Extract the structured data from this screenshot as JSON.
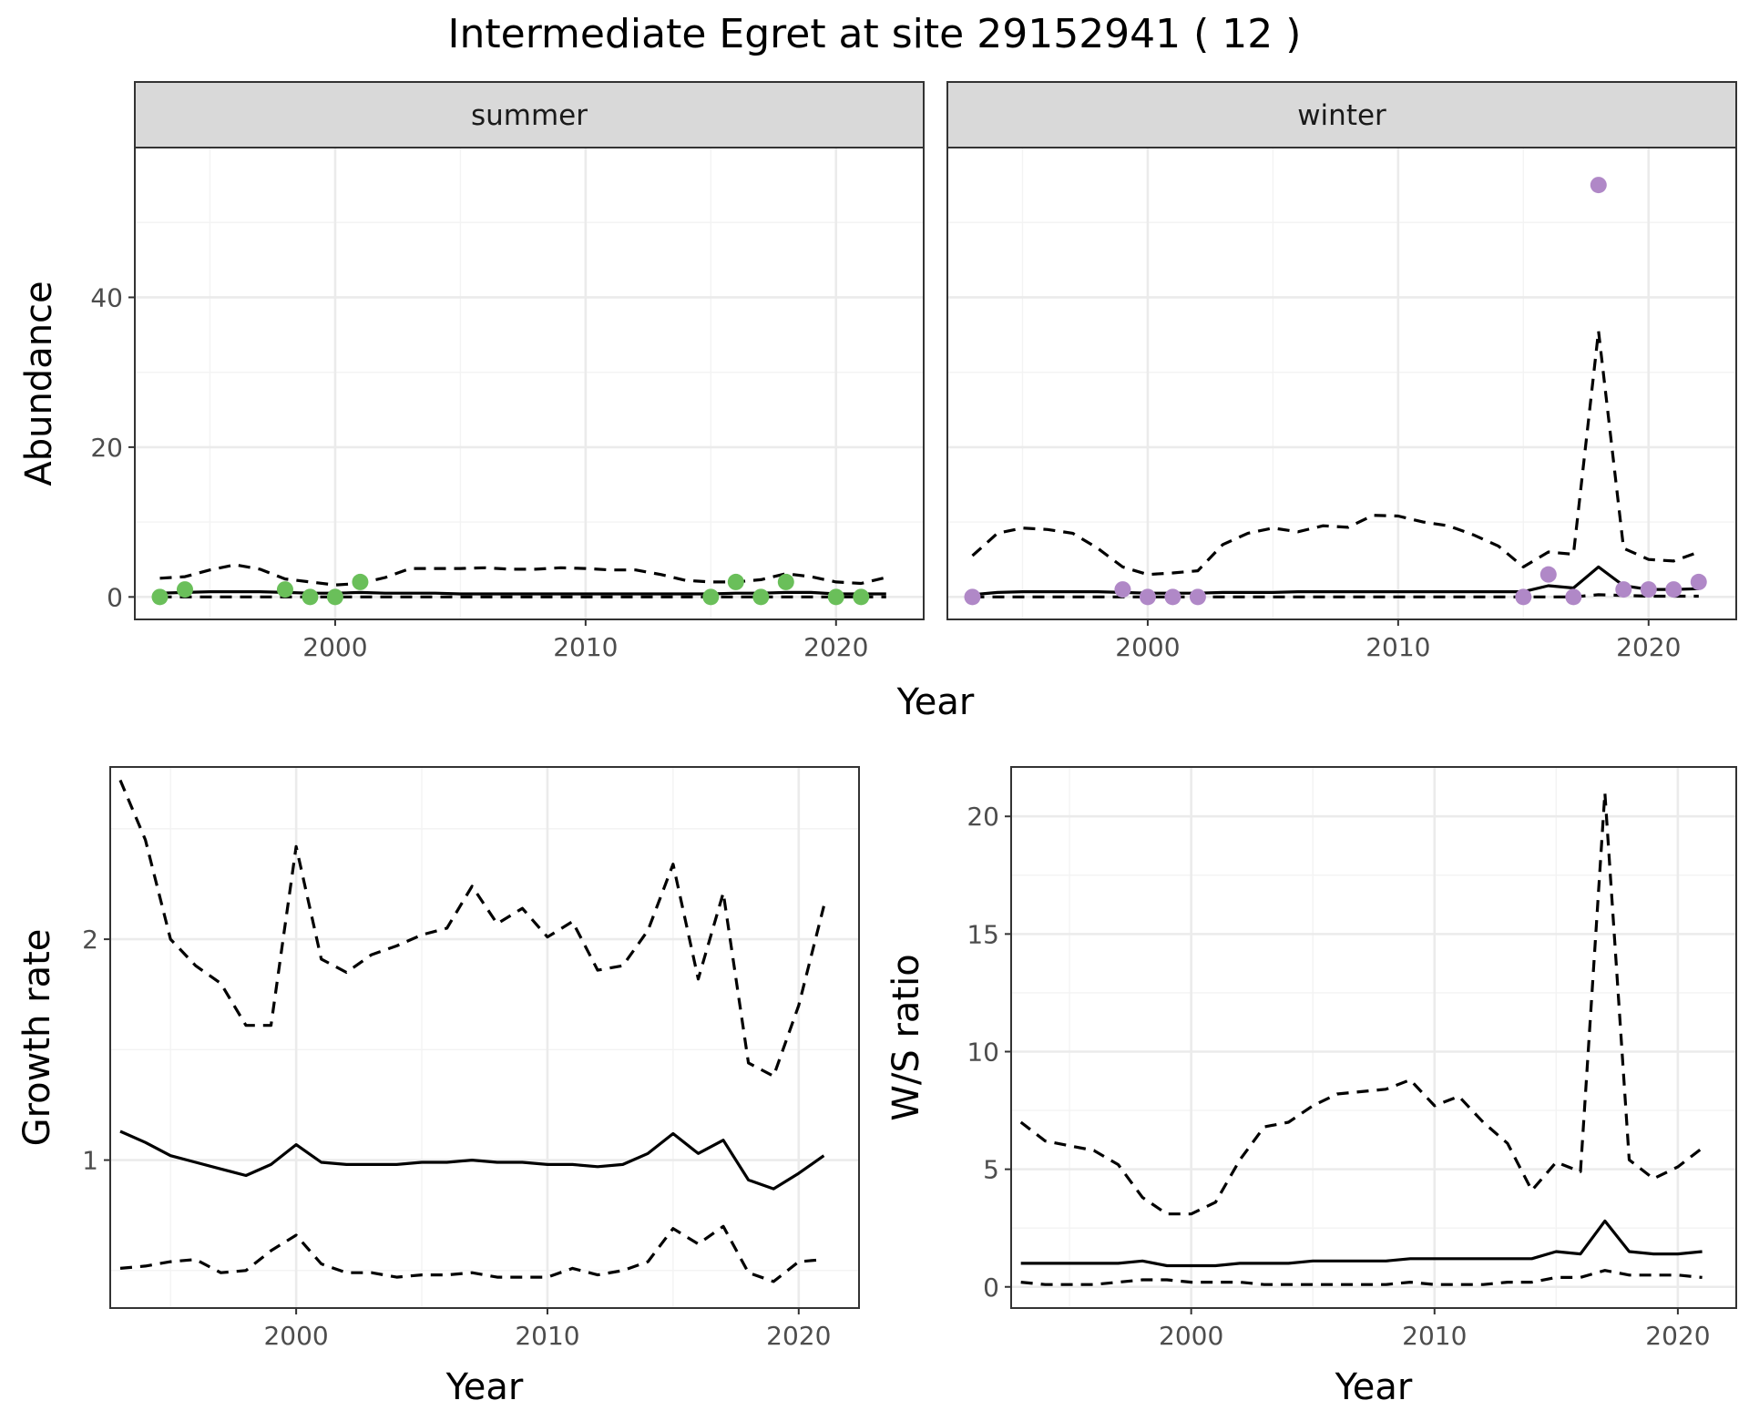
{
  "figure": {
    "title": "Intermediate Egret at site 29152941 ( 12 )"
  },
  "chart_data": [
    {
      "id": "abundance",
      "type": "line",
      "xlabel": "Year",
      "ylabel": "Abundance",
      "xlim": [
        1992,
        2023.5
      ],
      "ylim": [
        -3,
        60
      ],
      "x_ticks": [
        2000,
        2010,
        2020
      ],
      "y_ticks": [
        0,
        20,
        40
      ],
      "grid": true,
      "facets": [
        {
          "label": "summer",
          "point_color": "#6abf5a",
          "x": [
            1993,
            1994,
            1995,
            1996,
            1997,
            1998,
            1999,
            2000,
            2001,
            2002,
            2003,
            2004,
            2005,
            2006,
            2007,
            2008,
            2009,
            2010,
            2011,
            2012,
            2013,
            2014,
            2015,
            2016,
            2017,
            2018,
            2019,
            2020,
            2021,
            2022
          ],
          "estimate": [
            0.5,
            0.6,
            0.7,
            0.7,
            0.7,
            0.6,
            0.5,
            0.5,
            0.6,
            0.5,
            0.5,
            0.5,
            0.4,
            0.4,
            0.4,
            0.4,
            0.4,
            0.4,
            0.4,
            0.4,
            0.4,
            0.4,
            0.4,
            0.5,
            0.5,
            0.6,
            0.6,
            0.4,
            0.4,
            0.4
          ],
          "upper": [
            2.5,
            2.7,
            3.6,
            4.3,
            3.7,
            2.4,
            2.0,
            1.6,
            1.8,
            2.6,
            3.8,
            3.8,
            3.8,
            3.9,
            3.7,
            3.7,
            3.9,
            3.8,
            3.6,
            3.6,
            3.0,
            2.2,
            2.0,
            2.0,
            2.3,
            3.1,
            2.7,
            2.0,
            1.8,
            2.6
          ],
          "lower": [
            0,
            0,
            0,
            0,
            0,
            0,
            0,
            0,
            0,
            0,
            0,
            0,
            0,
            0,
            0,
            0,
            0,
            0,
            0,
            0,
            0,
            0,
            0,
            0,
            0,
            0,
            0,
            0,
            0,
            0
          ],
          "observed": {
            "x": [
              1993,
              1994,
              1998,
              1999,
              2000,
              2001,
              2015,
              2016,
              2017,
              2018,
              2020,
              2021
            ],
            "y": [
              0,
              1,
              1,
              0,
              0,
              2,
              0,
              2,
              0,
              2,
              0,
              0
            ]
          }
        },
        {
          "label": "winter",
          "point_color": "#b088c7",
          "x": [
            1993,
            1994,
            1995,
            1996,
            1997,
            1998,
            1999,
            2000,
            2001,
            2002,
            2003,
            2004,
            2005,
            2006,
            2007,
            2008,
            2009,
            2010,
            2011,
            2012,
            2013,
            2014,
            2015,
            2016,
            2017,
            2018,
            2019,
            2020,
            2021,
            2022
          ],
          "estimate": [
            0.3,
            0.6,
            0.7,
            0.7,
            0.7,
            0.7,
            0.6,
            0.5,
            0.5,
            0.5,
            0.6,
            0.6,
            0.6,
            0.7,
            0.7,
            0.7,
            0.7,
            0.7,
            0.7,
            0.7,
            0.7,
            0.7,
            0.7,
            1.5,
            1.2,
            4.0,
            1.5,
            1.0,
            1.0,
            1.1
          ],
          "upper": [
            5.5,
            8.5,
            9.2,
            9.0,
            8.5,
            6.5,
            4.0,
            3.0,
            3.2,
            3.5,
            7.0,
            8.5,
            9.2,
            8.7,
            9.5,
            9.3,
            10.9,
            10.8,
            10.0,
            9.5,
            8.3,
            6.8,
            4.0,
            6.0,
            5.7,
            35.5,
            6.5,
            5.0,
            4.8,
            6.0
          ],
          "lower": [
            0,
            0,
            0,
            0,
            0,
            0,
            0,
            0,
            0,
            0,
            0,
            0,
            0,
            0,
            0,
            0,
            0,
            0,
            0,
            0,
            0,
            0,
            0,
            0,
            0,
            0.3,
            0.2,
            0.1,
            0.1,
            0.1
          ],
          "observed": {
            "x": [
              1993,
              1999,
              2000,
              2001,
              2002,
              2015,
              2016,
              2017,
              2018,
              2019,
              2020,
              2021,
              2022
            ],
            "y": [
              0,
              1,
              0,
              0,
              0,
              0,
              3,
              0,
              55,
              1,
              1,
              1,
              2
            ]
          }
        }
      ]
    },
    {
      "id": "growth",
      "type": "line",
      "xlabel": "Year",
      "ylabel": "Growth rate",
      "xlim": [
        1992.6,
        2022.4
      ],
      "ylim": [
        0.33,
        2.78
      ],
      "x_ticks": [
        2000,
        2010,
        2020
      ],
      "y_ticks": [
        1,
        2
      ],
      "grid": true,
      "x": [
        1993,
        1994,
        1995,
        1996,
        1997,
        1998,
        1999,
        2000,
        2001,
        2002,
        2003,
        2004,
        2005,
        2006,
        2007,
        2008,
        2009,
        2010,
        2011,
        2012,
        2013,
        2014,
        2015,
        2016,
        2017,
        2018,
        2019,
        2020,
        2021
      ],
      "estimate": [
        1.13,
        1.08,
        1.02,
        0.99,
        0.96,
        0.93,
        0.98,
        1.07,
        0.99,
        0.98,
        0.98,
        0.98,
        0.99,
        0.99,
        1.0,
        0.99,
        0.99,
        0.98,
        0.98,
        0.97,
        0.98,
        1.03,
        1.12,
        1.03,
        1.09,
        0.91,
        0.87,
        0.94,
        1.02
      ],
      "upper": [
        2.72,
        2.45,
        2.0,
        1.88,
        1.8,
        1.61,
        1.61,
        2.42,
        1.91,
        1.85,
        1.93,
        1.97,
        2.02,
        2.05,
        2.24,
        2.07,
        2.14,
        2.01,
        2.08,
        1.86,
        1.88,
        2.04,
        2.34,
        1.82,
        2.21,
        1.44,
        1.38,
        1.7,
        2.15
      ],
      "lower": [
        0.51,
        0.52,
        0.54,
        0.55,
        0.49,
        0.5,
        0.59,
        0.66,
        0.53,
        0.49,
        0.49,
        0.47,
        0.48,
        0.48,
        0.49,
        0.47,
        0.47,
        0.47,
        0.51,
        0.48,
        0.5,
        0.54,
        0.69,
        0.62,
        0.7,
        0.49,
        0.45,
        0.54,
        0.55
      ]
    },
    {
      "id": "ws_ratio",
      "type": "line",
      "xlabel": "Year",
      "ylabel": "W/S ratio",
      "xlim": [
        1992.6,
        2022.4
      ],
      "ylim": [
        -0.9,
        22.1
      ],
      "x_ticks": [
        2000,
        2010,
        2020
      ],
      "y_ticks": [
        0,
        5,
        10,
        15,
        20
      ],
      "grid": true,
      "x": [
        1993,
        1994,
        1995,
        1996,
        1997,
        1998,
        1999,
        2000,
        2001,
        2002,
        2003,
        2004,
        2005,
        2006,
        2007,
        2008,
        2009,
        2010,
        2011,
        2012,
        2013,
        2014,
        2015,
        2016,
        2017,
        2018,
        2019,
        2020,
        2021
      ],
      "estimate": [
        1.0,
        1.0,
        1.0,
        1.0,
        1.0,
        1.1,
        0.9,
        0.9,
        0.9,
        1.0,
        1.0,
        1.0,
        1.1,
        1.1,
        1.1,
        1.1,
        1.2,
        1.2,
        1.2,
        1.2,
        1.2,
        1.2,
        1.5,
        1.4,
        2.8,
        1.5,
        1.4,
        1.4,
        1.5
      ],
      "upper": [
        7.0,
        6.2,
        6.0,
        5.8,
        5.2,
        3.8,
        3.1,
        3.1,
        3.6,
        5.4,
        6.8,
        7.0,
        7.7,
        8.2,
        8.3,
        8.4,
        8.8,
        7.7,
        8.1,
        7.0,
        6.1,
        4.1,
        5.3,
        4.9,
        21.0,
        5.4,
        4.6,
        5.1,
        5.9
      ],
      "lower": [
        0.2,
        0.1,
        0.1,
        0.1,
        0.2,
        0.3,
        0.3,
        0.2,
        0.2,
        0.2,
        0.1,
        0.1,
        0.1,
        0.1,
        0.1,
        0.1,
        0.2,
        0.1,
        0.1,
        0.1,
        0.2,
        0.2,
        0.4,
        0.4,
        0.7,
        0.5,
        0.5,
        0.5,
        0.4
      ]
    }
  ]
}
